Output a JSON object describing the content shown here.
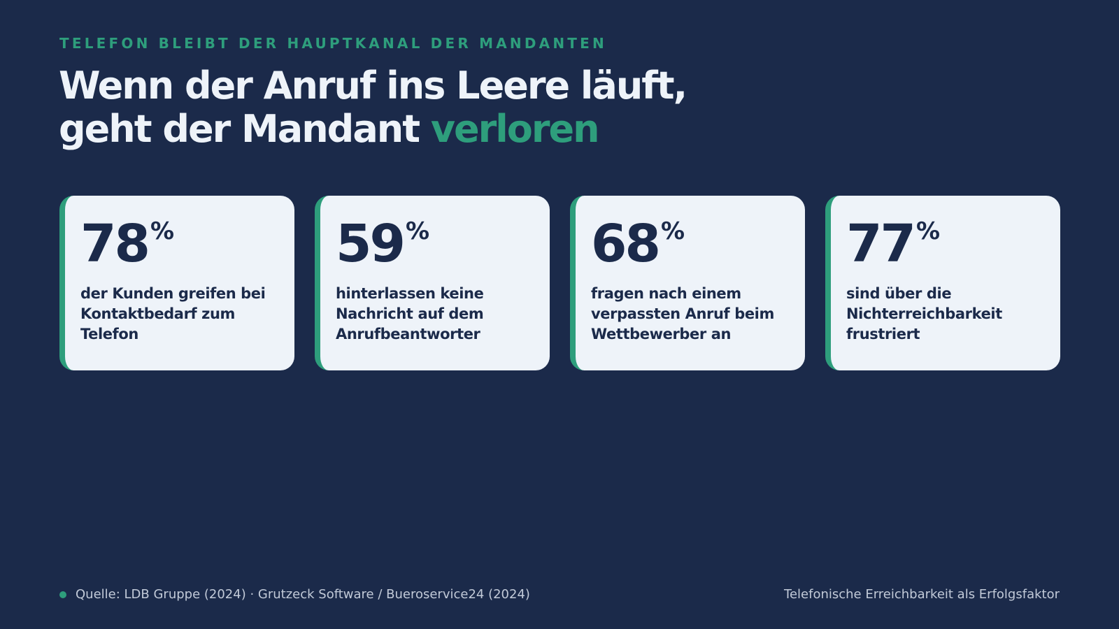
{
  "header": {
    "eyebrow": "TELEFON BLEIBT DER HAUPTKANAL DER MANDANTEN",
    "headline_line1": "Wenn der Anruf ins Leere läuft,",
    "headline_line2_prefix": "geht der Mandant ",
    "headline_line2_accent": "verloren"
  },
  "cards": [
    {
      "value": "78",
      "unit": "%",
      "text": "der Kunden greifen bei Kontaktbedarf zum Telefon"
    },
    {
      "value": "59",
      "unit": "%",
      "text": "hinterlassen keine Nachricht auf dem Anrufbeantworter"
    },
    {
      "value": "68",
      "unit": "%",
      "text": "fragen nach einem verpassten Anruf beim Wettbewerber an"
    },
    {
      "value": "77",
      "unit": "%",
      "text": "sind über die Nichterreichbarkeit frustriert"
    }
  ],
  "footer": {
    "source": "Quelle: LDB Gruppe (2024) · Grutzeck Software / Bueroservice24 (2024)",
    "tagline": "Telefonische Erreichbarkeit als Erfolgsfaktor"
  },
  "colors": {
    "background": "#1b2a4a",
    "accent": "#2e9e7c",
    "card": "#eef3f9"
  }
}
